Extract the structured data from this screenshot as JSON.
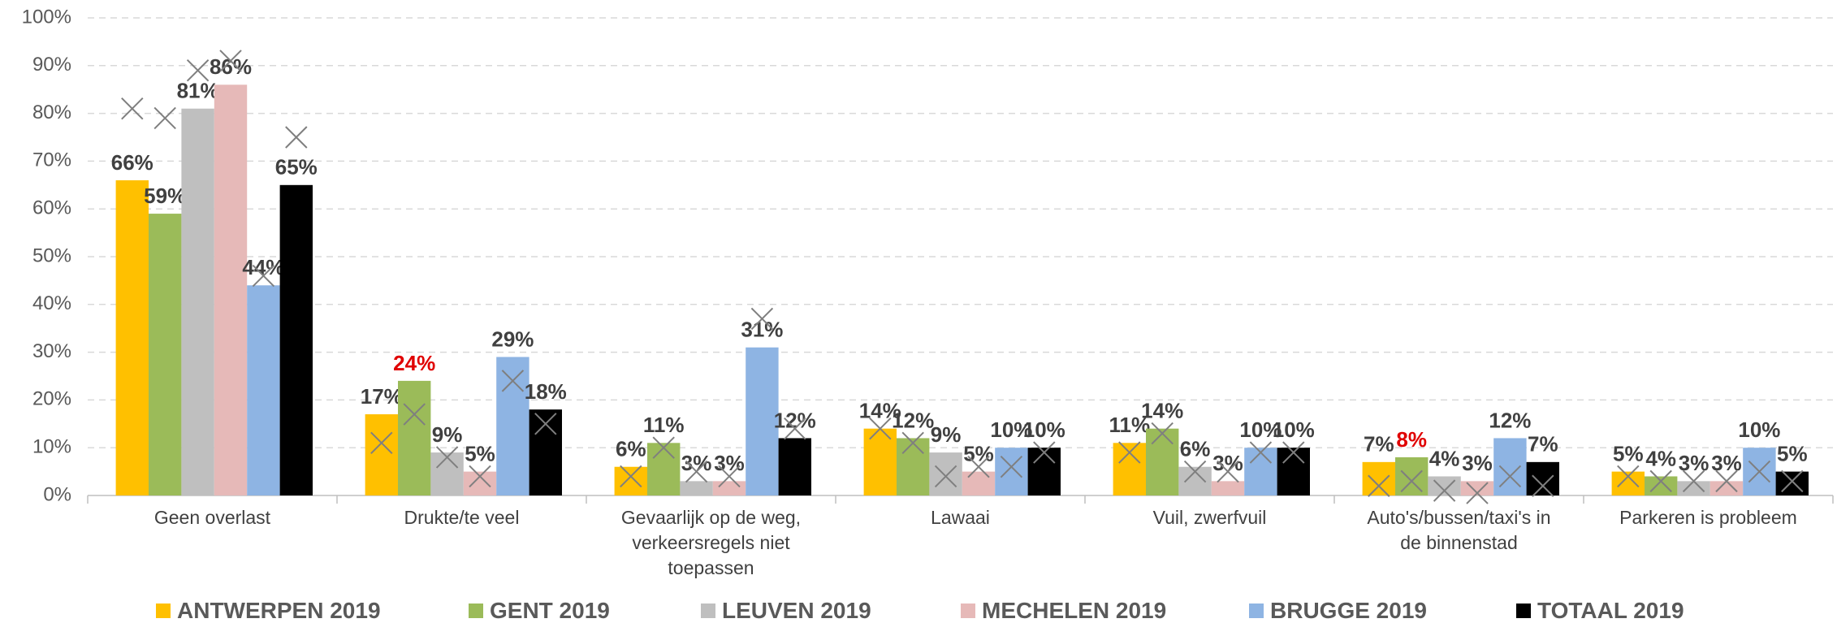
{
  "chart_data": {
    "type": "bar",
    "categories": [
      "Geen overlast",
      "Drukte/te veel",
      "Gevaarlijk op de weg, verkeersregels niet toepassen",
      "Lawaai",
      "Vuil, zwerfvuil",
      "Auto's/bussen/taxi's in de binnenstad",
      "Parkeren is probleem"
    ],
    "series": [
      {
        "name": "ANTWERPEN 2019",
        "color": "#ffc000",
        "values": [
          66,
          17,
          6,
          14,
          11,
          7,
          5
        ],
        "value_labels": [
          "66%",
          "17%",
          "6%",
          "14%",
          "11%",
          "7%",
          "5%"
        ],
        "marker_values": [
          81,
          11,
          4,
          14,
          9,
          2,
          4
        ]
      },
      {
        "name": "GENT 2019",
        "color": "#9bbb59",
        "values": [
          59,
          24,
          11,
          12,
          14,
          8,
          4
        ],
        "value_labels": [
          "59%",
          "24%",
          "11%",
          "12%",
          "14%",
          "8%",
          "4%"
        ],
        "label_colors": [
          "#404040",
          "#e00000",
          "#404040",
          "#404040",
          "#404040",
          "#e00000",
          "#404040"
        ],
        "marker_values": [
          79,
          17,
          10,
          11,
          13,
          3,
          3
        ]
      },
      {
        "name": "LEUVEN 2019",
        "color": "#bfbfbf",
        "values": [
          81,
          9,
          3,
          9,
          6,
          4,
          3
        ],
        "value_labels": [
          "81%",
          "9%",
          "3%",
          "9%",
          "6%",
          "4%",
          "3%"
        ],
        "marker_values": [
          89,
          8,
          5,
          4,
          5,
          1,
          3
        ]
      },
      {
        "name": "MECHELEN 2019",
        "color": "#e6b9b8",
        "values": [
          86,
          5,
          3,
          5,
          3,
          3,
          3
        ],
        "value_labels": [
          "86%",
          "5%",
          "3%",
          "5%",
          "3%",
          "3%",
          "3%"
        ],
        "marker_values": [
          91,
          4,
          4,
          6,
          5,
          0.5,
          3
        ]
      },
      {
        "name": "BRUGGE 2019",
        "color": "#8eb4e3",
        "values": [
          44,
          29,
          31,
          10,
          10,
          12,
          10
        ],
        "value_labels": [
          "44%",
          "29%",
          "31%",
          "10%",
          "10%",
          "12%",
          "10%"
        ],
        "marker_values": [
          46,
          24,
          37,
          6,
          9,
          4,
          5
        ]
      },
      {
        "name": "TOTAAL 2019",
        "color": "#000000",
        "values": [
          65,
          18,
          12,
          10,
          10,
          7,
          5
        ],
        "value_labels": [
          "65%",
          "18%",
          "12%",
          "10%",
          "10%",
          "7%",
          "5%"
        ],
        "marker_values": [
          75,
          15,
          14,
          9,
          9,
          2,
          3
        ]
      }
    ],
    "marker_color": "#7f7f7f",
    "ylim": [
      0,
      100
    ],
    "yticks": [
      {
        "value": 0,
        "label": "0%"
      },
      {
        "value": 10,
        "label": "10%"
      },
      {
        "value": 20,
        "label": "20%"
      },
      {
        "value": 30,
        "label": "30%"
      },
      {
        "value": 40,
        "label": "40%"
      },
      {
        "value": 50,
        "label": "50%"
      },
      {
        "value": 60,
        "label": "60%"
      },
      {
        "value": 70,
        "label": "70%"
      },
      {
        "value": 80,
        "label": "80%"
      },
      {
        "value": 90,
        "label": "90%"
      },
      {
        "value": 100,
        "label": "100%"
      }
    ],
    "grid": true,
    "legend": "bottom"
  }
}
